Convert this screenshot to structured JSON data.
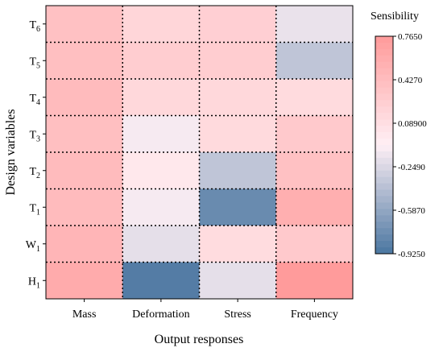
{
  "chart_data": {
    "type": "heatmap",
    "title": "",
    "xlabel": "Output responses",
    "ylabel": "Design variables",
    "x_categories": [
      "Mass",
      "Deformation",
      "Stress",
      "Frequency"
    ],
    "y_categories": [
      {
        "base": "T",
        "sub": "6"
      },
      {
        "base": "T",
        "sub": "5"
      },
      {
        "base": "T",
        "sub": "4"
      },
      {
        "base": "T",
        "sub": "3"
      },
      {
        "base": "T",
        "sub": "2"
      },
      {
        "base": "T",
        "sub": "1"
      },
      {
        "base": "W",
        "sub": "1"
      },
      {
        "base": "H",
        "sub": "1"
      }
    ],
    "values": [
      [
        0.38,
        0.18,
        0.24,
        -0.18
      ],
      [
        0.4,
        0.26,
        0.26,
        -0.38
      ],
      [
        0.44,
        0.16,
        0.16,
        0.13
      ],
      [
        0.4,
        -0.12,
        0.14,
        0.3
      ],
      [
        0.44,
        0.0,
        -0.38,
        0.38
      ],
      [
        0.44,
        -0.12,
        -0.78,
        0.56
      ],
      [
        0.5,
        -0.2,
        0.12,
        0.3
      ],
      [
        0.6,
        -0.88,
        -0.2,
        0.76
      ]
    ],
    "grid": true,
    "colorbar": {
      "title": "Sensibility",
      "min": -0.925,
      "max": 0.765,
      "tick_labels": [
        "0.7650",
        "0.4270",
        "0.08900",
        "-0.2490",
        "-0.5870",
        "-0.9250"
      ],
      "colors": {
        "low": "#4A76A0",
        "mid": "#FFF0F5",
        "high": "#FF9A9A"
      }
    }
  }
}
